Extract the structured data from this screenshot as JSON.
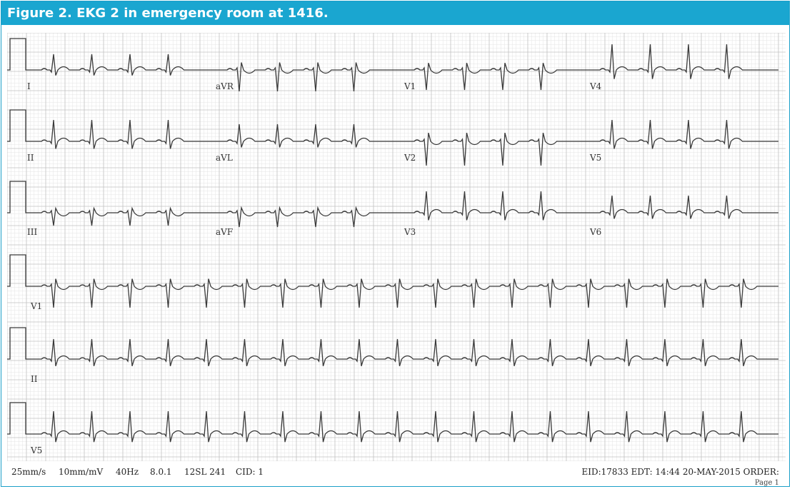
{
  "figure": {
    "title": "Figure 2. EKG 2 in emergency room at 1416."
  },
  "leads": {
    "row1": [
      "I",
      "aVR",
      "V1",
      "V4"
    ],
    "row2": [
      "II",
      "aVL",
      "V2",
      "V5"
    ],
    "row3": [
      "III",
      "aVF",
      "V3",
      "V6"
    ],
    "rhythm": [
      "V1",
      "II",
      "V5"
    ]
  },
  "footer": {
    "speed": "25mm/s",
    "gain": "10mm/mV",
    "filter": "40Hz",
    "version": "8.0.1",
    "program": "12SL 241",
    "cid": "CID: 1",
    "record": "EID:17833 EDT: 14:44 20-MAY-2015 ORDER:",
    "page": "Page 1"
  },
  "colors": {
    "banner": "#1aa6d0",
    "grid_minor": "#e4e4e4",
    "grid_major": "#c4c4c4",
    "trace": "#3a3a3a"
  }
}
